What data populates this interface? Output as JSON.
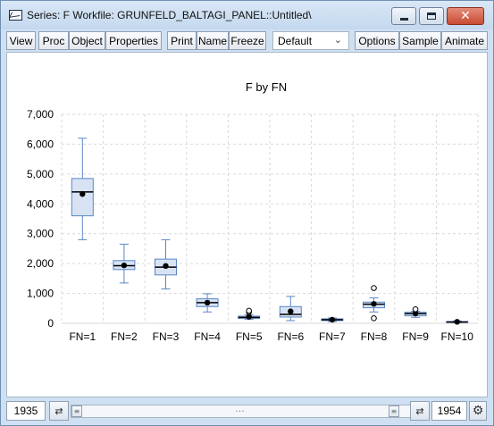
{
  "window": {
    "title": "Series: F   Workfile: GRUNFELD_BALTAGI_PANEL::Untitled\\",
    "close_glyph": "✕"
  },
  "toolbar": {
    "view": "View",
    "proc": "Proc",
    "object": "Object",
    "properties": "Properties",
    "print": "Print",
    "name": "Name",
    "freeze": "Freeze",
    "dropdown_value": "Default",
    "options": "Options",
    "sample": "Sample",
    "animate": "Animate"
  },
  "status": {
    "start": "1935",
    "end": "1954",
    "scroll_left_glyph": "⇄",
    "scroll_right_glyph": "⇄",
    "thumb_glyph": "≡",
    "mid_glyph": "…",
    "gear_glyph": "⚙"
  },
  "colors": {
    "box_fill": "#d7e3f3",
    "box_stroke": "#5b86c6",
    "grid": "#d9d9d9"
  },
  "chart_data": {
    "type": "boxplot",
    "title": "F by FN",
    "xlabel": "",
    "ylabel": "",
    "ylim": [
      0,
      7000
    ],
    "yticks": [
      0,
      1000,
      2000,
      3000,
      4000,
      5000,
      6000,
      7000
    ],
    "ytick_labels": [
      "0",
      "1,000",
      "2,000",
      "3,000",
      "4,000",
      "5,000",
      "6,000",
      "7,000"
    ],
    "grid": true,
    "categories": [
      "FN=1",
      "FN=2",
      "FN=3",
      "FN=4",
      "FN=5",
      "FN=6",
      "FN=7",
      "FN=8",
      "FN=9",
      "FN=10"
    ],
    "boxes": [
      {
        "min": 2800,
        "q1": 3600,
        "median": 4400,
        "q3": 4850,
        "max": 6200,
        "mean": 4330,
        "outliers": []
      },
      {
        "min": 1350,
        "q1": 1800,
        "median": 1930,
        "q3": 2100,
        "max": 2650,
        "mean": 1940,
        "outliers": []
      },
      {
        "min": 1150,
        "q1": 1620,
        "median": 1880,
        "q3": 2150,
        "max": 2800,
        "mean": 1920,
        "outliers": []
      },
      {
        "min": 380,
        "q1": 560,
        "median": 690,
        "q3": 820,
        "max": 990,
        "mean": 690,
        "outliers": []
      },
      {
        "min": 130,
        "q1": 160,
        "median": 200,
        "q3": 240,
        "max": 290,
        "mean": 220,
        "outliers": [
          380,
          420
        ]
      },
      {
        "min": 90,
        "q1": 210,
        "median": 300,
        "q3": 560,
        "max": 900,
        "mean": 400,
        "outliers": []
      },
      {
        "min": 60,
        "q1": 90,
        "median": 120,
        "q3": 150,
        "max": 180,
        "mean": 120,
        "outliers": []
      },
      {
        "min": 380,
        "q1": 520,
        "median": 640,
        "q3": 710,
        "max": 850,
        "mean": 650,
        "outliers": [
          1180,
          170
        ]
      },
      {
        "min": 200,
        "q1": 250,
        "median": 320,
        "q3": 370,
        "max": 400,
        "mean": 330,
        "outliers": [
          470
        ]
      },
      {
        "min": 20,
        "q1": 30,
        "median": 40,
        "q3": 60,
        "max": 80,
        "mean": 50,
        "outliers": []
      }
    ]
  }
}
